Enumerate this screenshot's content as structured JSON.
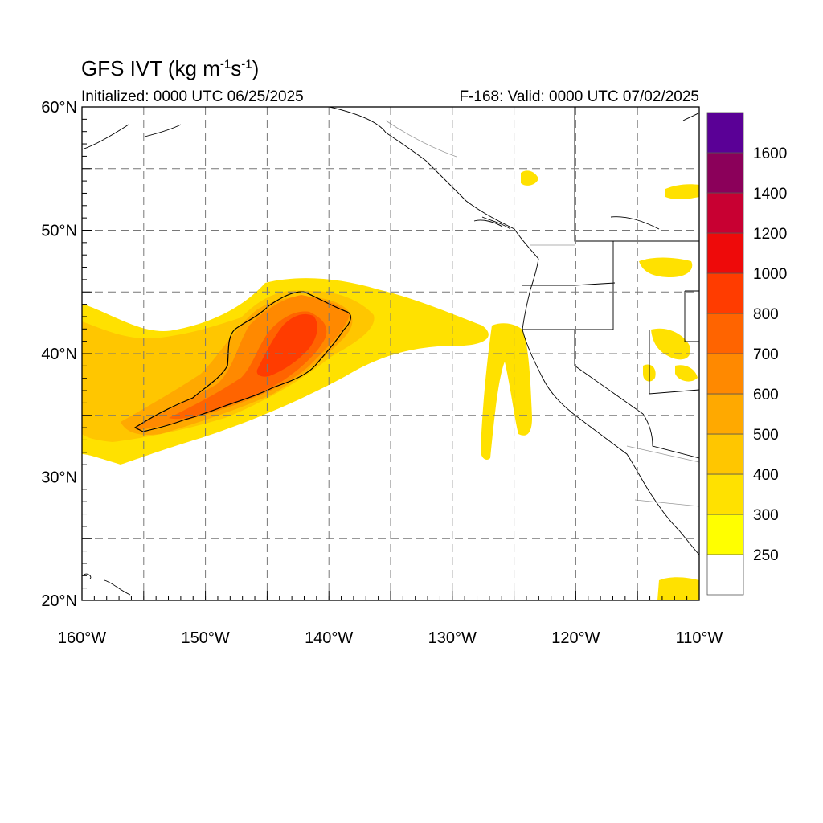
{
  "title": {
    "prefix": "GFS IVT (kg m",
    "exp1": "-1",
    "mid": "s",
    "exp2": "-1",
    "suffix": ")"
  },
  "subtitle_left": "Initialized: 0000 UTC 06/25/2025",
  "subtitle_right": "F-168: Valid: 0000 UTC 07/02/2025",
  "map": {
    "lon_range": [
      -160,
      -110
    ],
    "lat_range": [
      20,
      60
    ],
    "lon_labels": [
      "160°W",
      "150°W",
      "140°W",
      "130°W",
      "120°W",
      "110°W"
    ],
    "lat_labels": [
      "20°N",
      "30°N",
      "40°N",
      "50°N",
      "60°N"
    ],
    "gridlines": "dashed gray every 5 degrees"
  },
  "colorbar": {
    "labels": [
      "250",
      "300",
      "400",
      "500",
      "600",
      "700",
      "800",
      "1000",
      "1200",
      "1400",
      "1600"
    ],
    "colors": [
      "#ffffff",
      "#ffff00",
      "#ffe100",
      "#ffc600",
      "#ffa900",
      "#ff8900",
      "#ff6400",
      "#ff3c00",
      "#ee0a0a",
      "#c80032",
      "#8b005a",
      "#5a0096"
    ]
  },
  "legend": {
    "chart_data": {
      "type": "heatmap",
      "title": "GFS IVT (kg m-1s-1)",
      "variable": "IVT",
      "units": "kg m-1s-1",
      "levels": [
        250,
        300,
        400,
        500,
        600,
        700,
        800,
        1000,
        1200,
        1400,
        1600
      ],
      "contour_line_level": 500,
      "features": [
        {
          "name": "atmospheric river core",
          "max_approx": 800,
          "center_lon": -143,
          "center_lat": 42
        },
        {
          "name": "coastal plume",
          "range_approx": [
            250,
            400
          ],
          "center_lon": -125,
          "center_lat": 36
        }
      ]
    }
  }
}
